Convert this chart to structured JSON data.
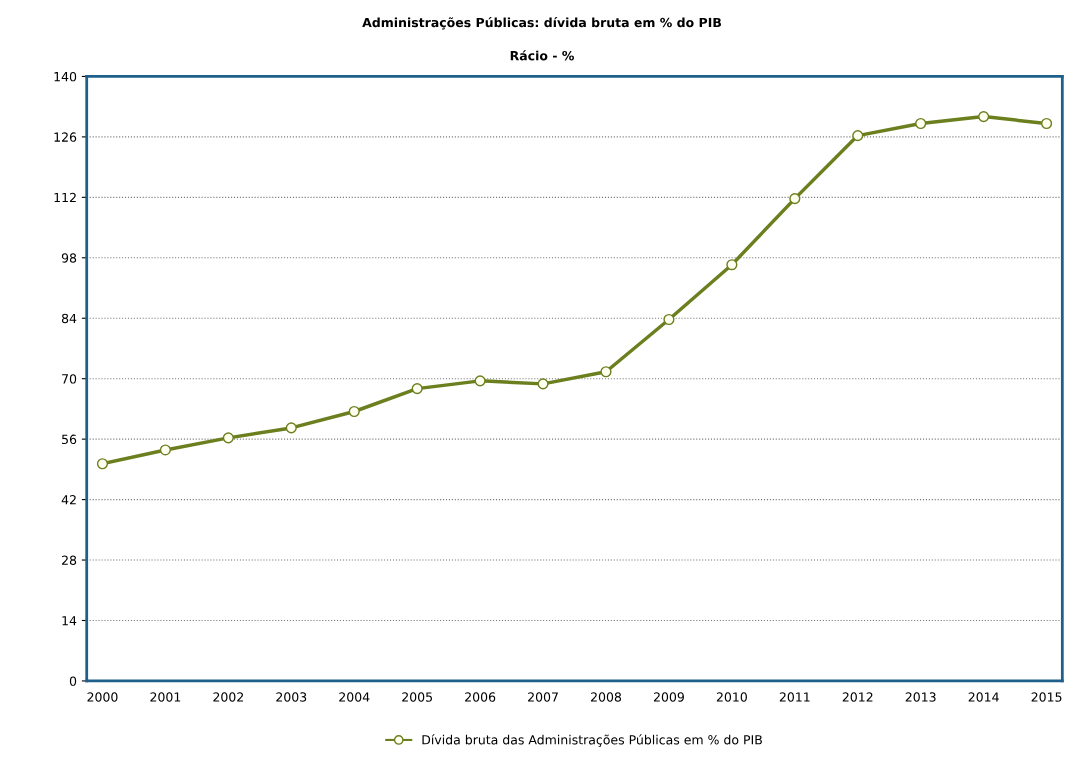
{
  "chart_data": {
    "type": "line",
    "title": "Administrações Públicas: dívida bruta em % do PIB",
    "subtitle": "Rácio - %",
    "categories": [
      "2000",
      "2001",
      "2002",
      "2003",
      "2004",
      "2005",
      "2006",
      "2007",
      "2008",
      "2009",
      "2010",
      "2011",
      "2012",
      "2013",
      "2014",
      "2015"
    ],
    "series": [
      {
        "name": "Dívida bruta das Administrações Públicas em % do PIB",
        "color": "#6b7f1e",
        "values": [
          50.3,
          53.5,
          56.3,
          58.6,
          62.4,
          67.7,
          69.5,
          68.8,
          71.6,
          83.7,
          96.4,
          111.7,
          126.3,
          129.1,
          130.7,
          129.1
        ]
      }
    ],
    "ylim": [
      0,
      140
    ],
    "yticks": [
      0,
      14,
      28,
      42,
      56,
      70,
      84,
      98,
      112,
      126,
      140
    ],
    "grid": "y",
    "legend": "bottom",
    "marker": "circle",
    "line_style": "solid"
  }
}
